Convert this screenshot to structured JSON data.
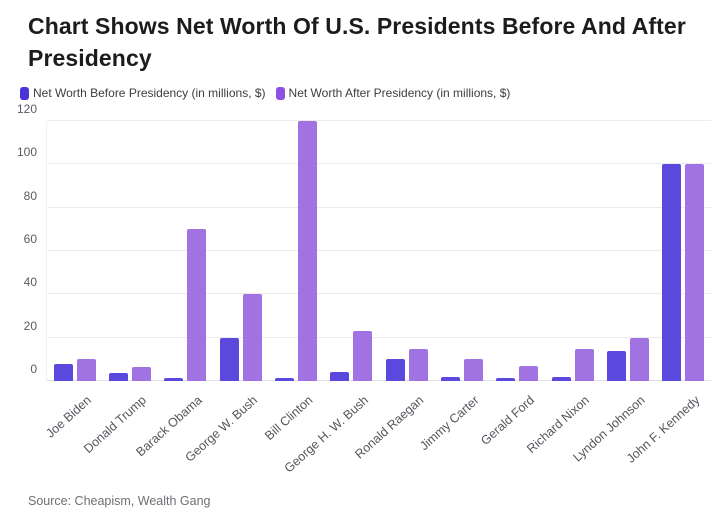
{
  "header": {
    "title": "Chart Shows Net Worth Of U.S. Presidents Before And After Presidency"
  },
  "legend": [
    {
      "label": "Net Worth Before Presidency (in millions, $)",
      "color": "#4a34d8"
    },
    {
      "label": "Net Worth After Presidency (in millions, $)",
      "color": "#8d51e3"
    }
  ],
  "chart_data": {
    "type": "bar",
    "title": "Chart Shows Net Worth Of U.S. Presidents Before And After Presidency",
    "categories": [
      "Joe Biden",
      "Donald Trump",
      "Barack Obama",
      "George W. Bush",
      "Bill Clinton",
      "George H. W. Bush",
      "Ronald Raegan",
      "Jimmy Carter",
      "Gerald Ford",
      "Richard Nixon",
      "Lyndon Johnson",
      "John F. Kennedy"
    ],
    "series": [
      {
        "name": "Net Worth Before Presidency (in millions, $)",
        "color": "#5b48dd",
        "values": [
          8,
          3.5,
          1.3,
          20,
          1.3,
          4,
          10,
          2,
          1.3,
          2,
          14,
          100
        ]
      },
      {
        "name": "Net Worth After Presidency (in millions, $)",
        "color": "#a173e2",
        "values": [
          10,
          6.5,
          70,
          40,
          120,
          23,
          15,
          10,
          7,
          15,
          20,
          100
        ]
      }
    ],
    "xlabel": "",
    "ylabel": "",
    "ylim": [
      0,
      120
    ],
    "yticks": [
      0,
      20,
      40,
      60,
      80,
      100,
      120
    ],
    "grid": true,
    "legend_position": "top-left"
  },
  "footer": {
    "source": "Source: Cheapism, Wealth Gang"
  }
}
